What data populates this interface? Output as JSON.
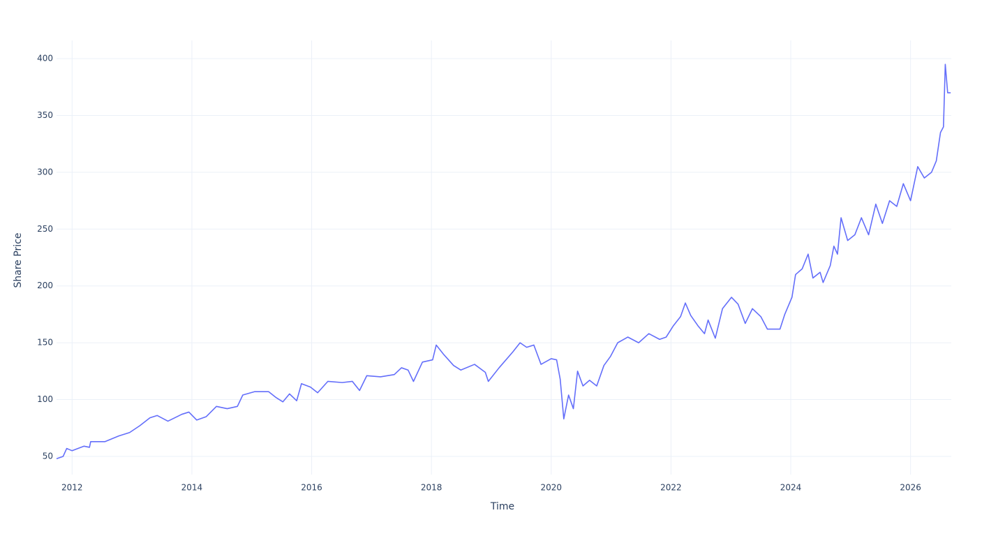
{
  "chart_data": {
    "type": "line",
    "x_label": "Time",
    "y_label": "Share Price",
    "color": "#636efa",
    "grid": true,
    "xlim": [
      2011.74,
      2026.68
    ],
    "ylim": [
      34,
      416
    ],
    "xticks": [
      2012,
      2014,
      2016,
      2018,
      2020,
      2022,
      2024,
      2026
    ],
    "yticks": [
      50,
      100,
      150,
      200,
      250,
      300,
      350,
      400
    ],
    "x": [
      2011.74,
      2011.85,
      2011.91,
      2012.0,
      2012.2,
      2012.29,
      2012.31,
      2012.55,
      2012.78,
      2012.96,
      2013.13,
      2013.3,
      2013.42,
      2013.6,
      2013.83,
      2013.95,
      2014.08,
      2014.24,
      2014.41,
      2014.59,
      2014.76,
      2014.85,
      2015.05,
      2015.28,
      2015.4,
      2015.52,
      2015.63,
      2015.75,
      2015.83,
      2015.98,
      2016.1,
      2016.27,
      2016.51,
      2016.68,
      2016.8,
      2016.92,
      2017.15,
      2017.38,
      2017.5,
      2017.61,
      2017.7,
      2017.85,
      2018.02,
      2018.08,
      2018.2,
      2018.37,
      2018.49,
      2018.72,
      2018.9,
      2018.95,
      2019.13,
      2019.36,
      2019.48,
      2019.59,
      2019.71,
      2019.83,
      2020.0,
      2020.09,
      2020.15,
      2020.21,
      2020.29,
      2020.37,
      2020.44,
      2020.53,
      2020.64,
      2020.76,
      2020.88,
      2020.99,
      2021.11,
      2021.28,
      2021.46,
      2021.63,
      2021.81,
      2021.92,
      2022.04,
      2022.16,
      2022.24,
      2022.33,
      2022.45,
      2022.56,
      2022.62,
      2022.74,
      2022.86,
      2023.01,
      2023.12,
      2023.24,
      2023.36,
      2023.5,
      2023.61,
      2023.82,
      2023.9,
      2024.02,
      2024.08,
      2024.19,
      2024.29,
      2024.37,
      2024.49,
      2024.54,
      2024.66,
      2024.72,
      2024.78,
      2024.84,
      2024.95,
      2025.07,
      2025.18,
      2025.3,
      2025.42,
      2025.53,
      2025.65,
      2025.77,
      2025.88,
      2026.0,
      2026.12,
      2026.23,
      2026.35,
      2026.43,
      2026.5,
      2026.55,
      2026.58,
      2026.62,
      2026.67
    ],
    "values": [
      48,
      50,
      57,
      55,
      59,
      58,
      63,
      63,
      68,
      71,
      77,
      84,
      86,
      81,
      87,
      89,
      82,
      85,
      94,
      92,
      94,
      104,
      107,
      107,
      102,
      98,
      105,
      99,
      114,
      111,
      106,
      116,
      115,
      116,
      108,
      121,
      120,
      122,
      128,
      126,
      116,
      133,
      135,
      148,
      140,
      130,
      126,
      131,
      124,
      116,
      128,
      142,
      150,
      146,
      148,
      131,
      136,
      135,
      118,
      83,
      104,
      92,
      125,
      112,
      117,
      112,
      130,
      138,
      150,
      155,
      150,
      158,
      153,
      155,
      165,
      173,
      185,
      174,
      165,
      158,
      170,
      154,
      180,
      190,
      184,
      167,
      180,
      173,
      162,
      162,
      175,
      190,
      210,
      215,
      228,
      207,
      212,
      203,
      218,
      235,
      228,
      260,
      240,
      245,
      260,
      245,
      272,
      255,
      275,
      270,
      290,
      275,
      305,
      295,
      300,
      310,
      335,
      340,
      395,
      370,
      370
    ]
  }
}
